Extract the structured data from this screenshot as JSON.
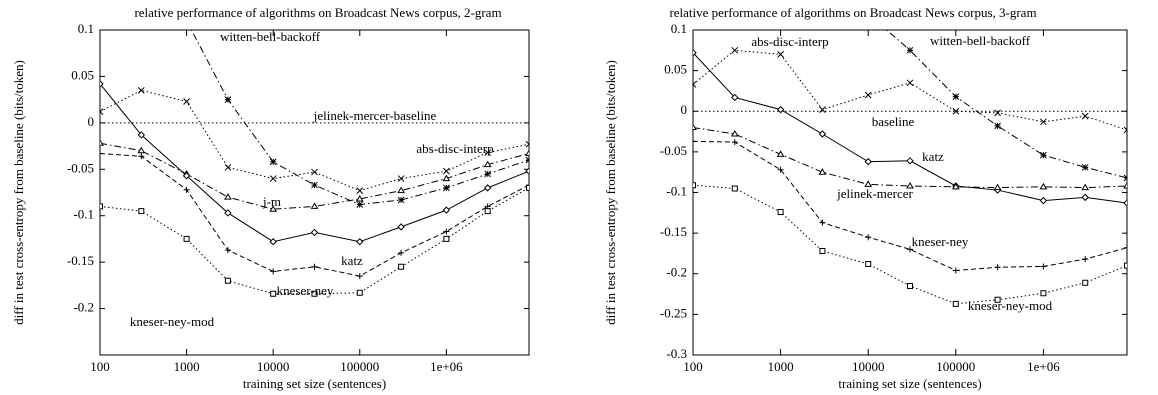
{
  "chart_data": [
    {
      "type": "line",
      "title": "relative performance of algorithms on Broadcast News corpus, 2-gram",
      "x_label": "training set size (sentences)",
      "y_label": "diff in test cross-entropy from baseline (bits/token)",
      "x_scale": "log",
      "xlim": [
        100,
        9000000
      ],
      "xticks": [
        100,
        1000,
        10000,
        100000,
        {
          "value": 1000000,
          "label": "1e+06"
        }
      ],
      "ylim": [
        -0.25,
        0.1
      ],
      "yticks": [
        0.1,
        0.05,
        0,
        -0.05,
        -0.1,
        -0.15,
        -0.2
      ],
      "x": [
        100,
        300,
        1000,
        3000,
        10000,
        30000,
        100000,
        300000,
        1000000,
        3000000,
        9000000
      ],
      "series": [
        {
          "name": "witten-bell-backoff",
          "color": "#000000",
          "dash": "dashdot",
          "marker": "star",
          "values": [
            null,
            null,
            0.11,
            0.025,
            -0.042,
            -0.067,
            -0.088,
            -0.083,
            -0.07,
            -0.055,
            -0.04
          ]
        },
        {
          "name": "jelinek-mercer-baseline",
          "color": "#000000",
          "dash": "dotted",
          "marker": "none",
          "values": [
            0,
            0,
            0,
            0,
            0,
            0,
            0,
            0,
            0,
            0,
            0
          ]
        },
        {
          "name": "abs-disc-interp",
          "color": "#000000",
          "dash": "dotted",
          "marker": "x",
          "values": [
            0.012,
            0.035,
            0.023,
            -0.048,
            -0.06,
            -0.053,
            -0.073,
            -0.06,
            -0.052,
            -0.032,
            -0.023
          ]
        },
        {
          "name": "j-m",
          "color": "#000000",
          "dash": "dashdot",
          "marker": "triangle",
          "values": [
            -0.022,
            -0.03,
            -0.055,
            -0.08,
            -0.093,
            -0.09,
            -0.082,
            -0.073,
            -0.06,
            -0.045,
            -0.033
          ]
        },
        {
          "name": "katz",
          "color": "#000000",
          "dash": "solid",
          "marker": "diamond",
          "values": [
            0.042,
            -0.013,
            -0.057,
            -0.097,
            -0.128,
            -0.118,
            -0.128,
            -0.112,
            -0.094,
            -0.07,
            -0.052
          ]
        },
        {
          "name": "kneser-ney",
          "color": "#000000",
          "dash": "dashed",
          "marker": "plus",
          "values": [
            -0.033,
            -0.036,
            -0.072,
            -0.137,
            -0.16,
            -0.155,
            -0.165,
            -0.14,
            -0.117,
            -0.09,
            -0.067
          ]
        },
        {
          "name": "kneser-ney-mod",
          "color": "#000000",
          "dash": "dotted",
          "marker": "square",
          "values": [
            -0.09,
            -0.095,
            -0.125,
            -0.17,
            -0.184,
            -0.184,
            -0.183,
            -0.155,
            -0.125,
            -0.095,
            -0.07
          ]
        }
      ]
    },
    {
      "type": "line",
      "title": "relative performance of algorithms on Broadcast News corpus, 3-gram",
      "x_label": "training set size (sentences)",
      "y_label": "diff in test cross-entropy from baseline (bits/token)",
      "x_scale": "log",
      "xlim": [
        100,
        9000000
      ],
      "xticks": [
        100,
        1000,
        10000,
        100000,
        {
          "value": 1000000,
          "label": "1e+06"
        }
      ],
      "ylim": [
        -0.3,
        0.1
      ],
      "yticks": [
        0.1,
        0.05,
        0,
        -0.05,
        -0.1,
        -0.15,
        -0.2,
        -0.25,
        -0.3
      ],
      "x": [
        100,
        300,
        1000,
        3000,
        10000,
        30000,
        100000,
        300000,
        1000000,
        3000000,
        9000000
      ],
      "series": [
        {
          "name": "abs-disc-interp",
          "color": "#000000",
          "dash": "dotted",
          "marker": "x",
          "values": [
            0.033,
            0.075,
            0.07,
            0.002,
            0.02,
            0.035,
            0,
            -0.002,
            -0.013,
            -0.006,
            -0.023
          ]
        },
        {
          "name": "witten-bell-backoff",
          "color": "#000000",
          "dash": "dashdot",
          "marker": "star",
          "values": [
            null,
            null,
            null,
            null,
            0.12,
            0.075,
            0.018,
            -0.018,
            -0.054,
            -0.069,
            -0.082
          ]
        },
        {
          "name": "baseline",
          "color": "#000000",
          "dash": "dotted",
          "marker": "none",
          "values": [
            0,
            0,
            0,
            0,
            0,
            0,
            0,
            0,
            0,
            0,
            0
          ]
        },
        {
          "name": "katz",
          "color": "#000000",
          "dash": "solid",
          "marker": "diamond",
          "values": [
            0.072,
            0.017,
            0.002,
            -0.028,
            -0.062,
            -0.061,
            -0.092,
            -0.097,
            -0.11,
            -0.106,
            -0.113
          ]
        },
        {
          "name": "jelinek-mercer",
          "color": "#000000",
          "dash": "dashdot",
          "marker": "triangle",
          "values": [
            -0.02,
            -0.028,
            -0.053,
            -0.075,
            -0.09,
            -0.092,
            -0.093,
            -0.094,
            -0.093,
            -0.094,
            -0.092
          ]
        },
        {
          "name": "kneser-ney",
          "color": "#000000",
          "dash": "dashed",
          "marker": "plus",
          "values": [
            -0.037,
            -0.038,
            -0.072,
            -0.137,
            -0.155,
            -0.17,
            -0.196,
            -0.192,
            -0.191,
            -0.182,
            -0.168
          ]
        },
        {
          "name": "kneser-ney-mod",
          "color": "#000000",
          "dash": "dotted",
          "marker": "square",
          "values": [
            -0.091,
            -0.095,
            -0.124,
            -0.172,
            -0.188,
            -0.215,
            -0.237,
            -0.232,
            -0.224,
            -0.211,
            -0.19
          ]
        }
      ]
    }
  ]
}
